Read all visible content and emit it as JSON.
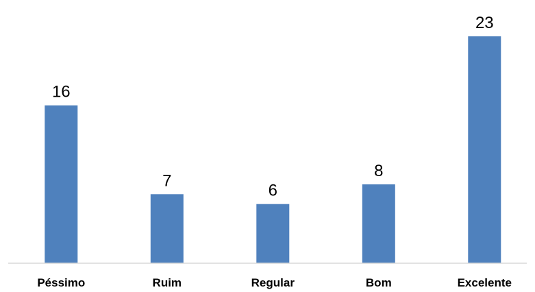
{
  "chart_data": {
    "type": "bar",
    "categories": [
      "Péssimo",
      "Ruim",
      "Regular",
      "Bom",
      "Excelente"
    ],
    "values": [
      16,
      7,
      6,
      8,
      23
    ],
    "title": "",
    "xlabel": "",
    "ylabel": "",
    "ylim": [
      0,
      23
    ],
    "grid": false,
    "legend": "none",
    "data_labels": true,
    "bar_color": "#4F81BD",
    "axis_color": "#D9D9D9"
  }
}
